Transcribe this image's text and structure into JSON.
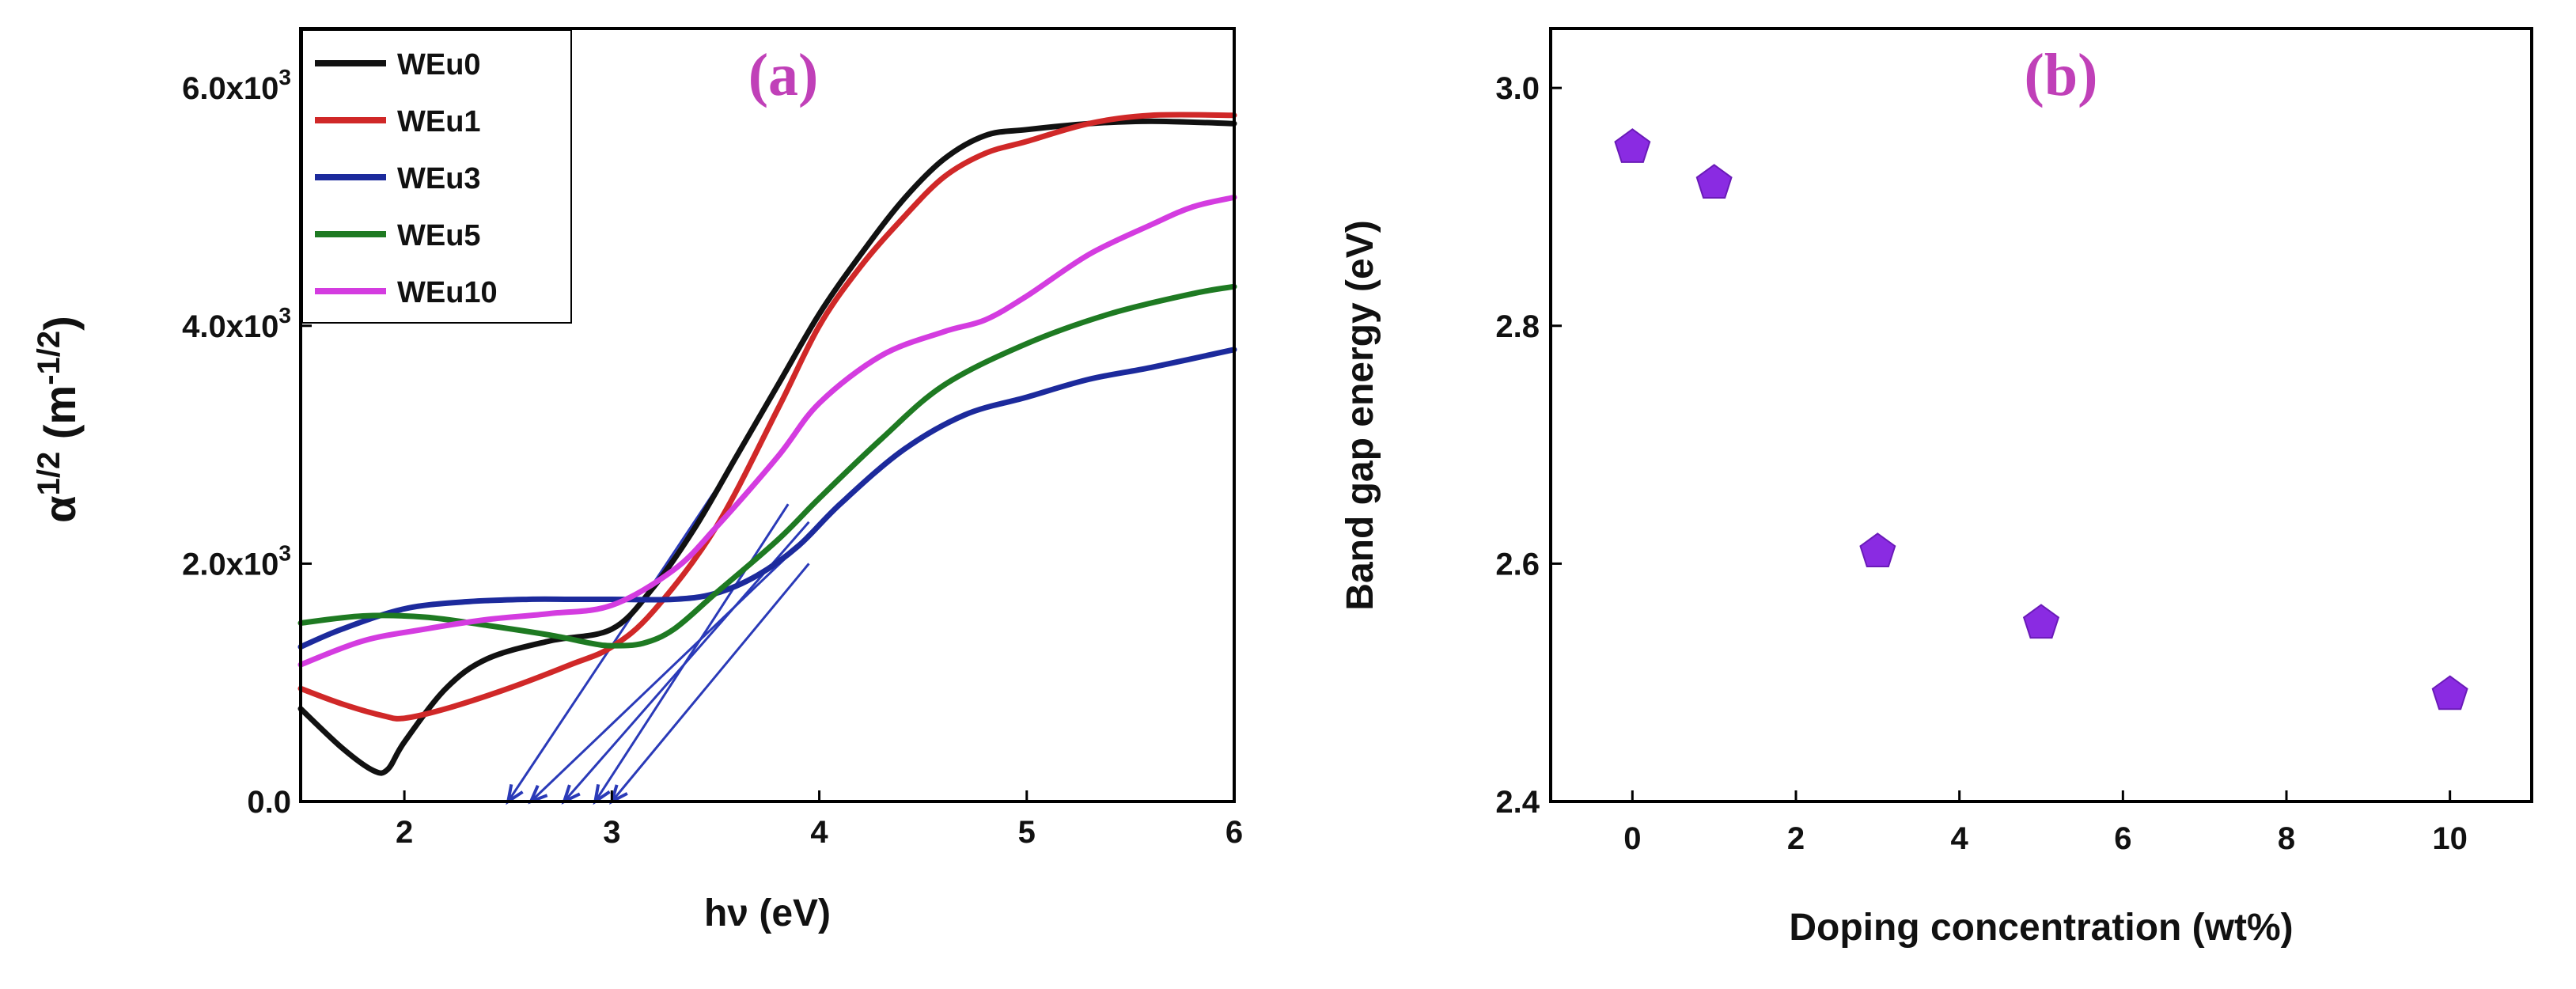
{
  "chart_data": [
    {
      "type": "line",
      "panel_label": "(a)",
      "xlabel": "hν (eV)",
      "ylabel": {
        "base": "α",
        "base_exp": "1/2",
        "unit": "(m",
        "unit_exp": "-1/2",
        "unit_close": ")"
      },
      "xlim": [
        1.5,
        6
      ],
      "ylim": [
        0,
        6500
      ],
      "xticks": [
        2,
        3,
        4,
        5,
        6
      ],
      "xtick_labels": [
        "2",
        "3",
        "4",
        "5",
        "6"
      ],
      "yticks": [
        0,
        2000,
        4000,
        6000
      ],
      "ytick_labels": [
        {
          "base": "0.0",
          "exp": ""
        },
        {
          "base": "2.0x10",
          "exp": "3"
        },
        {
          "base": "4.0x10",
          "exp": "3"
        },
        {
          "base": "6.0x10",
          "exp": "3"
        }
      ],
      "legend_position": "top-left",
      "series": [
        {
          "name": "WEu0",
          "color": "#111111",
          "x": [
            1.5,
            1.7,
            1.85,
            1.92,
            2.0,
            2.2,
            2.4,
            2.7,
            3.0,
            3.2,
            3.4,
            3.6,
            3.8,
            4.0,
            4.2,
            4.4,
            4.6,
            4.8,
            5.0,
            5.3,
            5.6,
            6.0
          ],
          "y": [
            780,
            450,
            260,
            270,
            500,
            950,
            1200,
            1350,
            1450,
            1800,
            2300,
            2900,
            3500,
            4100,
            4600,
            5050,
            5400,
            5600,
            5650,
            5700,
            5720,
            5700
          ]
        },
        {
          "name": "WEu1",
          "color": "#d02828",
          "x": [
            1.5,
            1.7,
            1.9,
            2.0,
            2.2,
            2.5,
            2.8,
            3.0,
            3.2,
            3.5,
            3.8,
            4.0,
            4.2,
            4.4,
            4.6,
            4.8,
            5.0,
            5.3,
            5.6,
            6.0
          ],
          "y": [
            950,
            820,
            720,
            700,
            780,
            950,
            1150,
            1300,
            1600,
            2300,
            3300,
            4000,
            4500,
            4900,
            5250,
            5450,
            5550,
            5700,
            5770,
            5770
          ]
        },
        {
          "name": "WEu3",
          "color": "#1c2a9c",
          "x": [
            1.5,
            1.7,
            2.0,
            2.3,
            2.6,
            2.8,
            3.0,
            3.3,
            3.5,
            3.7,
            3.9,
            4.1,
            4.4,
            4.7,
            5.0,
            5.3,
            5.6,
            6.0
          ],
          "y": [
            1300,
            1450,
            1620,
            1680,
            1700,
            1700,
            1700,
            1700,
            1750,
            1900,
            2150,
            2500,
            2950,
            3250,
            3400,
            3550,
            3650,
            3800
          ]
        },
        {
          "name": "WEu5",
          "color": "#1e7a22",
          "x": [
            1.5,
            1.8,
            2.1,
            2.4,
            2.7,
            2.9,
            3.0,
            3.15,
            3.3,
            3.5,
            3.8,
            4.0,
            4.3,
            4.6,
            5.0,
            5.4,
            5.8,
            6.0
          ],
          "y": [
            1500,
            1560,
            1550,
            1480,
            1400,
            1330,
            1310,
            1330,
            1450,
            1750,
            2200,
            2550,
            3050,
            3500,
            3850,
            4100,
            4270,
            4330
          ]
        },
        {
          "name": "WEu10",
          "color": "#d43ce0",
          "x": [
            1.5,
            1.8,
            2.1,
            2.4,
            2.7,
            3.0,
            3.3,
            3.5,
            3.8,
            4.0,
            4.3,
            4.6,
            4.8,
            5.0,
            5.3,
            5.6,
            5.8,
            6.0
          ],
          "y": [
            1150,
            1350,
            1450,
            1530,
            1580,
            1650,
            1950,
            2300,
            2900,
            3350,
            3750,
            3950,
            4050,
            4250,
            4600,
            4850,
            5000,
            5080
          ]
        }
      ],
      "tangent_lines": [
        {
          "color": "#2a3ab8",
          "x": [
            2.5,
            3.55
          ],
          "y": [
            0,
            2750
          ]
        },
        {
          "color": "#2a3ab8",
          "x": [
            2.61,
            3.9
          ],
          "y": [
            0,
            2150
          ]
        },
        {
          "color": "#2a3ab8",
          "x": [
            2.77,
            3.95
          ],
          "y": [
            0,
            2350
          ]
        },
        {
          "color": "#2a3ab8",
          "x": [
            2.92,
            3.85
          ],
          "y": [
            0,
            2500
          ]
        },
        {
          "color": "#2a3ab8",
          "x": [
            3.0,
            3.95
          ],
          "y": [
            0,
            2000
          ]
        }
      ]
    },
    {
      "type": "scatter",
      "panel_label": "(b)",
      "xlabel": "Doping concentration (wt%)",
      "ylabel": "Band gap energy (eV)",
      "xlim": [
        -1,
        11
      ],
      "ylim": [
        2.4,
        3.05
      ],
      "xticks": [
        0,
        2,
        4,
        6,
        8,
        10
      ],
      "xtick_labels": [
        "0",
        "2",
        "4",
        "6",
        "8",
        "10"
      ],
      "yticks": [
        2.4,
        2.6,
        2.8,
        3.0
      ],
      "ytick_labels": [
        "2.4",
        "2.6",
        "2.8",
        "3.0"
      ],
      "marker": "pentagon",
      "marker_color": "#8a2be2",
      "x": [
        0,
        1,
        3,
        5,
        10
      ],
      "y": [
        2.95,
        2.92,
        2.61,
        2.55,
        2.49
      ]
    }
  ]
}
